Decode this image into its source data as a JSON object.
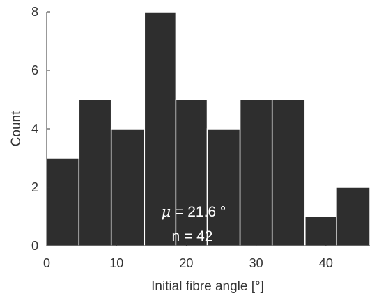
{
  "chart_data": {
    "type": "bar",
    "title": "",
    "xlabel": "Initial fibre angle [°]",
    "ylabel": "Count",
    "bin_edges": [
      0,
      4.62,
      9.25,
      14.0,
      18.5,
      23.0,
      27.7,
      32.3,
      37.0,
      41.5,
      46.3
    ],
    "values": [
      3,
      5,
      4,
      8,
      5,
      4,
      5,
      5,
      1,
      2
    ],
    "xlim": [
      0,
      46.3
    ],
    "ylim": [
      0,
      8
    ],
    "xticks": [
      "0",
      "10",
      "20",
      "30",
      "40"
    ],
    "yticks": [
      "0",
      "2",
      "4",
      "6",
      "8"
    ],
    "annotation": {
      "mu_symbol": "μ",
      "mean_text": " = 21.6 °",
      "n_text": "n = 42"
    },
    "colors": {
      "bar_fill": "#2e2e2e",
      "bar_edge": "#ffffff",
      "axis": "#333333"
    },
    "grid": false
  }
}
